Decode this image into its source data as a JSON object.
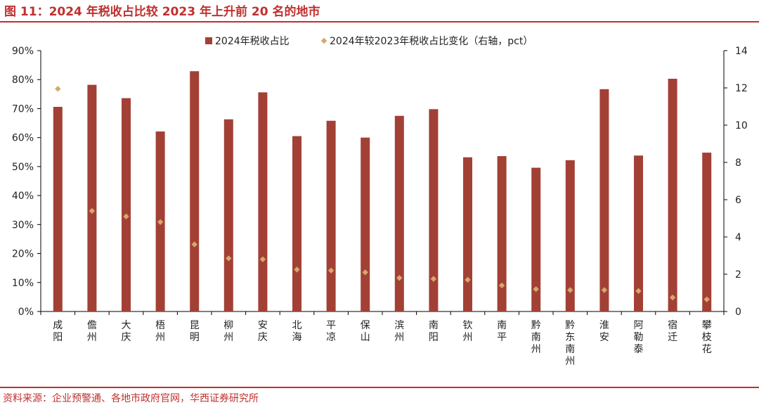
{
  "figure": {
    "title": "图 11：2024 年税收占比较 2023 年上升前 20 名的地市",
    "source": "资料来源：企业预警通、各地市政府官网，华西证券研究所"
  },
  "colors": {
    "bar": "#A34035",
    "marker": "#D4A86A",
    "accent": "#C0302E",
    "axis": "#000000",
    "text": "#222222"
  },
  "chart_data": {
    "type": "bar",
    "categories": [
      "成阳",
      "儋州",
      "大庆",
      "梧州",
      "昆明",
      "柳州",
      "安庆",
      "北海",
      "平凉",
      "保山",
      "滨州",
      "南阳",
      "钦州",
      "南平",
      "黔南州",
      "黔东南州",
      "淮安",
      "阿勒泰",
      "宿迁",
      "攀枝花"
    ],
    "series": [
      {
        "name": "2024年税收占比",
        "type": "bar",
        "axis": "left",
        "values": [
          70.6,
          78.2,
          73.6,
          62.1,
          82.9,
          66.3,
          75.6,
          60.5,
          65.8,
          60.0,
          67.5,
          69.8,
          53.2,
          53.6,
          49.6,
          52.2,
          76.7,
          53.8,
          80.3,
          54.8
        ]
      },
      {
        "name": "2024年较2023年税收占比变化（右轴，pct）",
        "type": "scatter",
        "axis": "right",
        "values": [
          11.95,
          5.4,
          5.1,
          4.8,
          3.6,
          2.85,
          2.8,
          2.25,
          2.2,
          2.1,
          1.8,
          1.75,
          1.7,
          1.4,
          1.2,
          1.15,
          1.15,
          1.1,
          0.75,
          0.65
        ]
      }
    ],
    "ylim": [
      0,
      90
    ],
    "y_ticks": [
      "0%",
      "10%",
      "20%",
      "30%",
      "40%",
      "50%",
      "60%",
      "70%",
      "80%",
      "90%"
    ],
    "y2lim": [
      0,
      14
    ],
    "y2_ticks": [
      "0",
      "2",
      "4",
      "6",
      "8",
      "10",
      "12",
      "14"
    ],
    "grid": false,
    "legend_position": "top"
  }
}
